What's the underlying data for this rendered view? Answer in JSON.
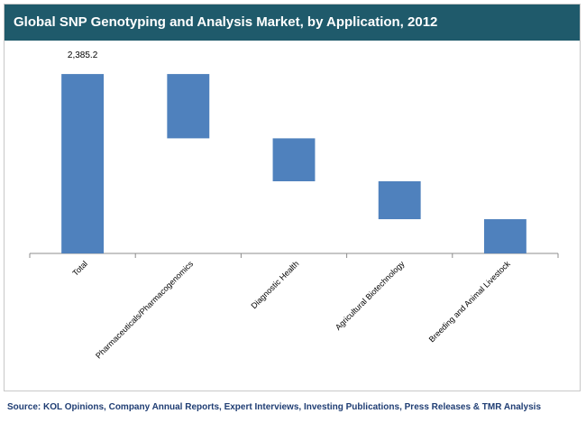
{
  "page": {
    "source": "Source: KOL Opinions, Company Annual Reports, Expert Interviews, Investing Publications, Press Releases & TMR Analysis"
  },
  "chart_data": {
    "type": "bar",
    "subtype": "waterfall",
    "title": "Global SNP Genotyping and Analysis Market, by Application, 2012",
    "xlabel": "",
    "ylabel": "",
    "ylim": [
      0,
      2650
    ],
    "grid": false,
    "legend": "none",
    "bar_color": "#4f81bd",
    "categories": [
      "Total",
      "Pharmaceuticals/Pharmacogenomics",
      "Diagnostic Health",
      "Agricultural Biotechnology",
      "Breeding and Animal Livestock"
    ],
    "values": [
      2385.2,
      855,
      571,
      504,
      455
    ],
    "data_labels": [
      "2,385.2",
      "",
      "",
      "",
      ""
    ]
  }
}
